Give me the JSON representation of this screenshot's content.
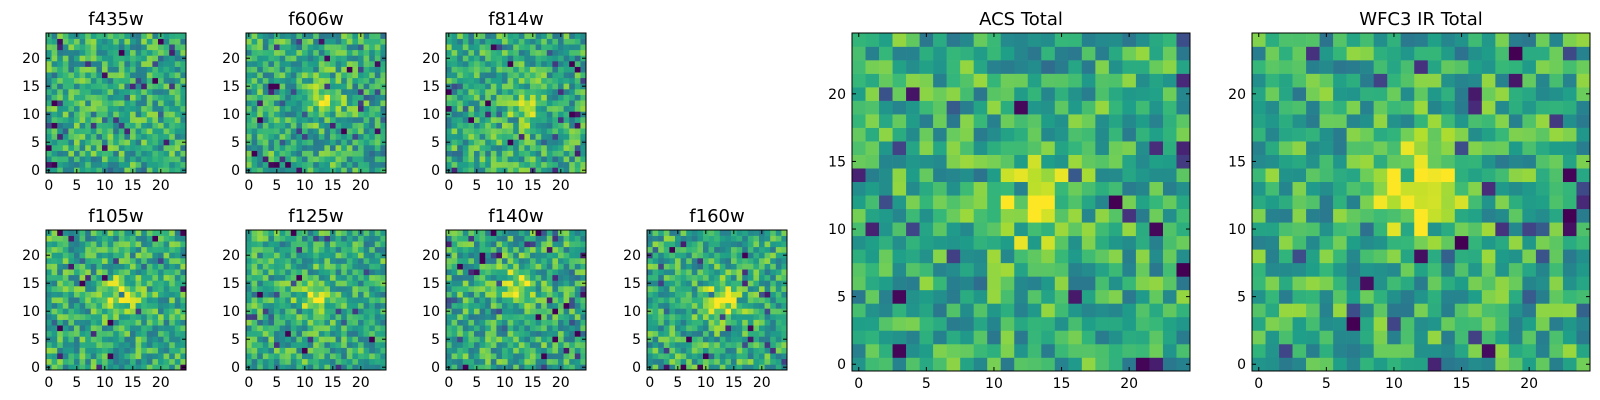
{
  "chart_data": [
    {
      "id": "p0",
      "type": "heatmap",
      "title": "f435w",
      "grid_size": 25,
      "xticks": [
        "0",
        "5",
        "10",
        "15",
        "20"
      ],
      "yticks": [
        "0",
        "5",
        "10",
        "15",
        "20"
      ],
      "xlim": [
        0,
        24
      ],
      "ylim": [
        0,
        24
      ],
      "blob": null,
      "seed": 11,
      "colormap": "viridis"
    },
    {
      "id": "p1",
      "type": "heatmap",
      "title": "f606w",
      "grid_size": 25,
      "xticks": [
        "0",
        "5",
        "10",
        "15",
        "20"
      ],
      "yticks": [
        "0",
        "5",
        "10",
        "15",
        "20"
      ],
      "xlim": [
        0,
        24
      ],
      "ylim": [
        0,
        24
      ],
      "blob": {
        "x": 13,
        "y": 13,
        "amp": 0.25
      },
      "seed": 23,
      "colormap": "viridis"
    },
    {
      "id": "p2",
      "type": "heatmap",
      "title": "f814w",
      "grid_size": 25,
      "xticks": [
        "0",
        "5",
        "10",
        "15",
        "20"
      ],
      "yticks": [
        "0",
        "5",
        "10",
        "15",
        "20"
      ],
      "xlim": [
        0,
        24
      ],
      "ylim": [
        0,
        24
      ],
      "blob": {
        "x": 14,
        "y": 11,
        "amp": 0.2
      },
      "seed": 37,
      "colormap": "viridis"
    },
    {
      "id": "p3",
      "type": "heatmap",
      "title": "f105w",
      "grid_size": 25,
      "xticks": [
        "0",
        "5",
        "10",
        "15",
        "20"
      ],
      "yticks": [
        "0",
        "5",
        "10",
        "15",
        "20"
      ],
      "xlim": [
        0,
        24
      ],
      "ylim": [
        0,
        24
      ],
      "blob": {
        "x": 13,
        "y": 13,
        "amp": 0.3
      },
      "seed": 41,
      "colormap": "viridis"
    },
    {
      "id": "p4",
      "type": "heatmap",
      "title": "f125w",
      "grid_size": 25,
      "xticks": [
        "0",
        "5",
        "10",
        "15",
        "20"
      ],
      "yticks": [
        "0",
        "5",
        "10",
        "15",
        "20"
      ],
      "xlim": [
        0,
        24
      ],
      "ylim": [
        0,
        24
      ],
      "blob": {
        "x": 12,
        "y": 12,
        "amp": 0.25
      },
      "seed": 53,
      "colormap": "viridis"
    },
    {
      "id": "p5",
      "type": "heatmap",
      "title": "f140w",
      "grid_size": 25,
      "xticks": [
        "0",
        "5",
        "10",
        "15",
        "20"
      ],
      "yticks": [
        "0",
        "5",
        "10",
        "15",
        "20"
      ],
      "xlim": [
        0,
        24
      ],
      "ylim": [
        0,
        24
      ],
      "blob": {
        "x": 12,
        "y": 15,
        "amp": 0.25
      },
      "seed": 67,
      "colormap": "viridis"
    },
    {
      "id": "p6",
      "type": "heatmap",
      "title": "f160w",
      "grid_size": 25,
      "xticks": [
        "0",
        "5",
        "10",
        "15",
        "20"
      ],
      "yticks": [
        "0",
        "5",
        "10",
        "15",
        "20"
      ],
      "xlim": [
        0,
        24
      ],
      "ylim": [
        0,
        24
      ],
      "blob": {
        "x": 13,
        "y": 12,
        "amp": 0.3
      },
      "seed": 79,
      "colormap": "viridis"
    },
    {
      "id": "p7",
      "type": "heatmap",
      "title": "ACS Total",
      "grid_size": 25,
      "xticks": [
        "0",
        "5",
        "10",
        "15",
        "20"
      ],
      "yticks": [
        "0",
        "5",
        "10",
        "15",
        "20"
      ],
      "xlim": [
        0,
        24
      ],
      "ylim": [
        0,
        24
      ],
      "blob": {
        "x": 13,
        "y": 12,
        "amp": 0.35
      },
      "seed": 83,
      "colormap": "viridis"
    },
    {
      "id": "p8",
      "type": "heatmap",
      "title": "WFC3 IR Total",
      "grid_size": 25,
      "xticks": [
        "0",
        "5",
        "10",
        "15",
        "20"
      ],
      "yticks": [
        "0",
        "5",
        "10",
        "15",
        "20"
      ],
      "xlim": [
        0,
        24
      ],
      "ylim": [
        0,
        24
      ],
      "blob": {
        "x": 12,
        "y": 13,
        "amp": 0.5
      },
      "seed": 97,
      "colormap": "viridis"
    }
  ]
}
